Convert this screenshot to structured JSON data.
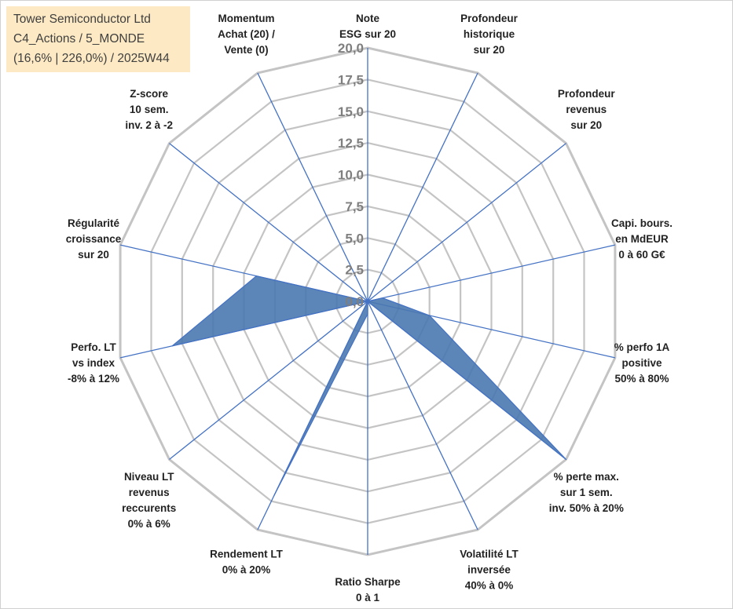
{
  "title_box": {
    "line1": "Tower Semiconductor Ltd",
    "line2": "C4_Actions / 5_MONDE",
    "line3": "(16,6% | 226,0%) / 2025W44"
  },
  "colors": {
    "grid": "#c4c4c4",
    "spoke": "#4472c4",
    "fill": "#4a78b0",
    "tick_text": "#7f7f7f",
    "label_text": "#222222",
    "title_bg": "#fde9c3"
  },
  "chart_data": {
    "type": "radar",
    "rmin": 0,
    "rmax": 20,
    "step": 2.5,
    "tick_labels": [
      "0,0",
      "2,5",
      "5,0",
      "7,5",
      "10,0",
      "12,5",
      "15,0",
      "17,5",
      "20,0"
    ],
    "axes": [
      {
        "lines": [
          "Note",
          "ESG sur 20"
        ],
        "value": 0
      },
      {
        "lines": [
          "Profondeur",
          "historique",
          "sur 20"
        ],
        "value": 0
      },
      {
        "lines": [
          "Profondeur",
          "revenus",
          "sur 20"
        ],
        "value": 0
      },
      {
        "lines": [
          "Capi. bours.",
          "en MdEUR",
          "0 à 60 G€"
        ],
        "value": 1.2
      },
      {
        "lines": [
          "% perfo 1A",
          "positive",
          "50% à 80%"
        ],
        "value": 5.0
      },
      {
        "lines": [
          "% perte max.",
          "sur 1 sem.",
          "inv. 50% à 20%"
        ],
        "value": 20.0
      },
      {
        "lines": [
          "Volatilité LT",
          "inversée",
          "40% à 0%"
        ],
        "value": 0
      },
      {
        "lines": [
          "Ratio Sharpe",
          "0 à 1"
        ],
        "value": 1.0
      },
      {
        "lines": [
          "Rendement LT",
          "0% à 20%"
        ],
        "value": 17.0
      },
      {
        "lines": [
          "Niveau LT",
          "revenus",
          "reccurents",
          "0% à 6%"
        ],
        "value": 0
      },
      {
        "lines": [
          "Perfo. LT",
          "vs index",
          "-8% à 12%"
        ],
        "value": 15.8
      },
      {
        "lines": [
          "Régularité",
          "croissance",
          "sur 20"
        ],
        "value": 9.0
      },
      {
        "lines": [
          "Z-score",
          "10 sem.",
          "inv. 2 à -2"
        ],
        "value": 0
      },
      {
        "lines": [
          "Momentum",
          "Achat (20) /",
          "Vente (0)"
        ],
        "value": 0
      }
    ]
  }
}
